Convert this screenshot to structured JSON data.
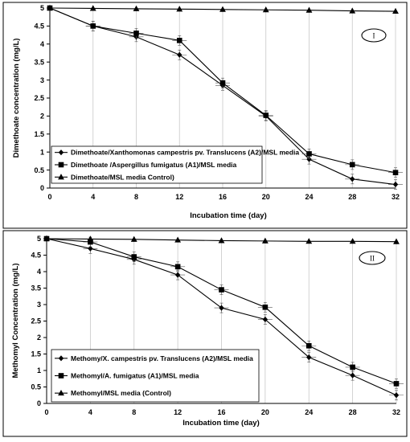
{
  "chart_data": [
    {
      "type": "line",
      "panel_label": "I",
      "xlabel": "Incubation time (day)",
      "ylabel": "Dimethoate concentration  (mg/L)",
      "x": [
        0,
        4,
        8,
        12,
        16,
        20,
        24,
        28,
        32
      ],
      "xticks": [
        "0",
        "4",
        "8",
        "12",
        "16",
        "20",
        "24",
        "28",
        "32"
      ],
      "yticks": [
        "0",
        "0.5",
        "1",
        "1.5",
        "2",
        "2.5",
        "3",
        "3.5",
        "4",
        "4.5",
        "5"
      ],
      "xlim": [
        0,
        32
      ],
      "ylim": [
        0,
        5
      ],
      "grid": "vertical",
      "legend_position": "bottom-left",
      "series": [
        {
          "name": "Dimethoate/Xanthomonas campestris pv. Translucens (A2)/MSL media",
          "marker": "diamond",
          "values": [
            5.0,
            4.5,
            4.2,
            3.7,
            2.85,
            2.0,
            0.8,
            0.25,
            0.1
          ]
        },
        {
          "name": "Dimethoate /Aspergillus fumigatus (A1)/MSL media",
          "marker": "square",
          "values": [
            5.0,
            4.5,
            4.3,
            4.1,
            2.92,
            2.02,
            0.95,
            0.65,
            0.43
          ]
        },
        {
          "name": "Dimethoate/MSL media Control)",
          "marker": "triangle",
          "values": [
            5.0,
            4.99,
            4.98,
            4.97,
            4.96,
            4.95,
            4.94,
            4.92,
            4.91
          ]
        }
      ]
    },
    {
      "type": "line",
      "panel_label": "II",
      "xlabel": "Incubation time (day)",
      "ylabel": "Methomyl Concentration  (mg/L)",
      "x": [
        0,
        4,
        8,
        12,
        16,
        20,
        24,
        28,
        32
      ],
      "xticks": [
        "0",
        "4",
        "8",
        "12",
        "16",
        "20",
        "24",
        "28",
        "32"
      ],
      "yticks": [
        "0",
        "0.5",
        "1",
        "1.5",
        "2",
        "2.5",
        "3",
        "3.5",
        "4",
        "4.5",
        "5"
      ],
      "xlim": [
        0,
        32
      ],
      "ylim": [
        0,
        5
      ],
      "grid": "vertical",
      "legend_position": "bottom-left",
      "series": [
        {
          "name": "Methomy/X. campestris pv. Translucens (A2)/MSL media",
          "marker": "diamond",
          "values": [
            5.0,
            4.7,
            4.37,
            3.9,
            2.9,
            2.55,
            1.4,
            0.85,
            0.25
          ]
        },
        {
          "name": "Methomyl/A. fumigatus (A1)/MSL media",
          "marker": "square",
          "values": [
            5.0,
            4.9,
            4.45,
            4.15,
            3.45,
            2.92,
            1.75,
            1.1,
            0.6
          ]
        },
        {
          "name": "Methomyl/MSL media (Control)",
          "marker": "triangle",
          "values": [
            5.0,
            4.99,
            4.98,
            4.96,
            4.94,
            4.93,
            4.92,
            4.92,
            4.91
          ]
        }
      ]
    }
  ]
}
